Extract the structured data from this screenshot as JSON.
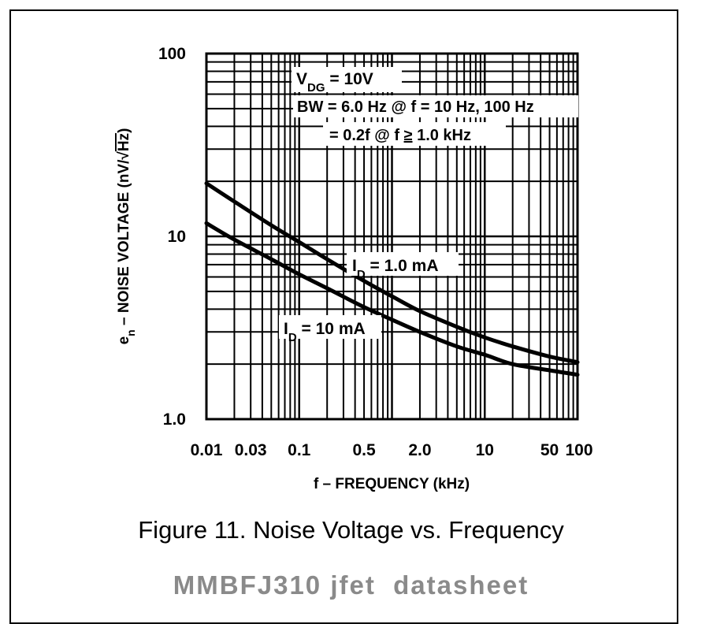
{
  "chart_data": {
    "type": "line",
    "x_scale": "log",
    "y_scale": "log",
    "xlim": [
      0.01,
      100
    ],
    "ylim": [
      1.0,
      100
    ],
    "grid": true,
    "x_tick_labels": [
      "0.01",
      "0.03",
      "0.1",
      "0.5",
      "2.0",
      "10",
      "50",
      "100"
    ],
    "x_tick_values": [
      0.01,
      0.03,
      0.1,
      0.5,
      2.0,
      10,
      50,
      100
    ],
    "y_tick_labels": [
      "1.0",
      "10",
      "100"
    ],
    "y_tick_values": [
      1.0,
      10,
      100
    ],
    "xlabel": "f – FREQUENCY (kHz)",
    "ylabel_main": "e",
    "ylabel_sub": "n",
    "ylabel_rest": " – NOISE VOLTAGE (nV/",
    "ylabel_root_sign": "√",
    "ylabel_root_body": "Hz",
    "ylabel_close": ")",
    "conditions": {
      "line1_main": "V",
      "line1_sub": "DG",
      "line1_rest": " = 10V",
      "line2": "BW = 6.0 Hz @ f = 10 Hz, 100 Hz",
      "line3_pre": "= 0.2f @ f ",
      "line3_ge": "≥",
      "line3_post": " 1.0 kHz"
    },
    "series": [
      {
        "name": "I_D = 1.0 mA",
        "label_main": "I",
        "label_sub": "D",
        "label_rest": " = 1.0 mA",
        "x": [
          0.01,
          0.02,
          0.05,
          0.1,
          0.2,
          0.5,
          1.0,
          2.0,
          5.0,
          10,
          20,
          50,
          100
        ],
        "values": [
          19.5,
          15.5,
          11.5,
          9.3,
          7.5,
          5.7,
          4.7,
          3.9,
          3.2,
          2.8,
          2.5,
          2.2,
          2.05
        ]
      },
      {
        "name": "I_D = 10 mA",
        "label_main": "I",
        "label_sub": "D",
        "label_rest": " = 10 mA",
        "x": [
          0.01,
          0.02,
          0.05,
          0.1,
          0.2,
          0.5,
          1.0,
          2.0,
          5.0,
          10,
          20,
          50,
          100
        ],
        "values": [
          11.8,
          9.6,
          7.5,
          6.2,
          5.2,
          4.1,
          3.5,
          3.0,
          2.5,
          2.25,
          2.0,
          1.85,
          1.75
        ]
      }
    ]
  },
  "figure_caption": "Figure 11. Noise Voltage vs. Frequency",
  "watermark": "MMBFJ310 jfet  datasheet"
}
